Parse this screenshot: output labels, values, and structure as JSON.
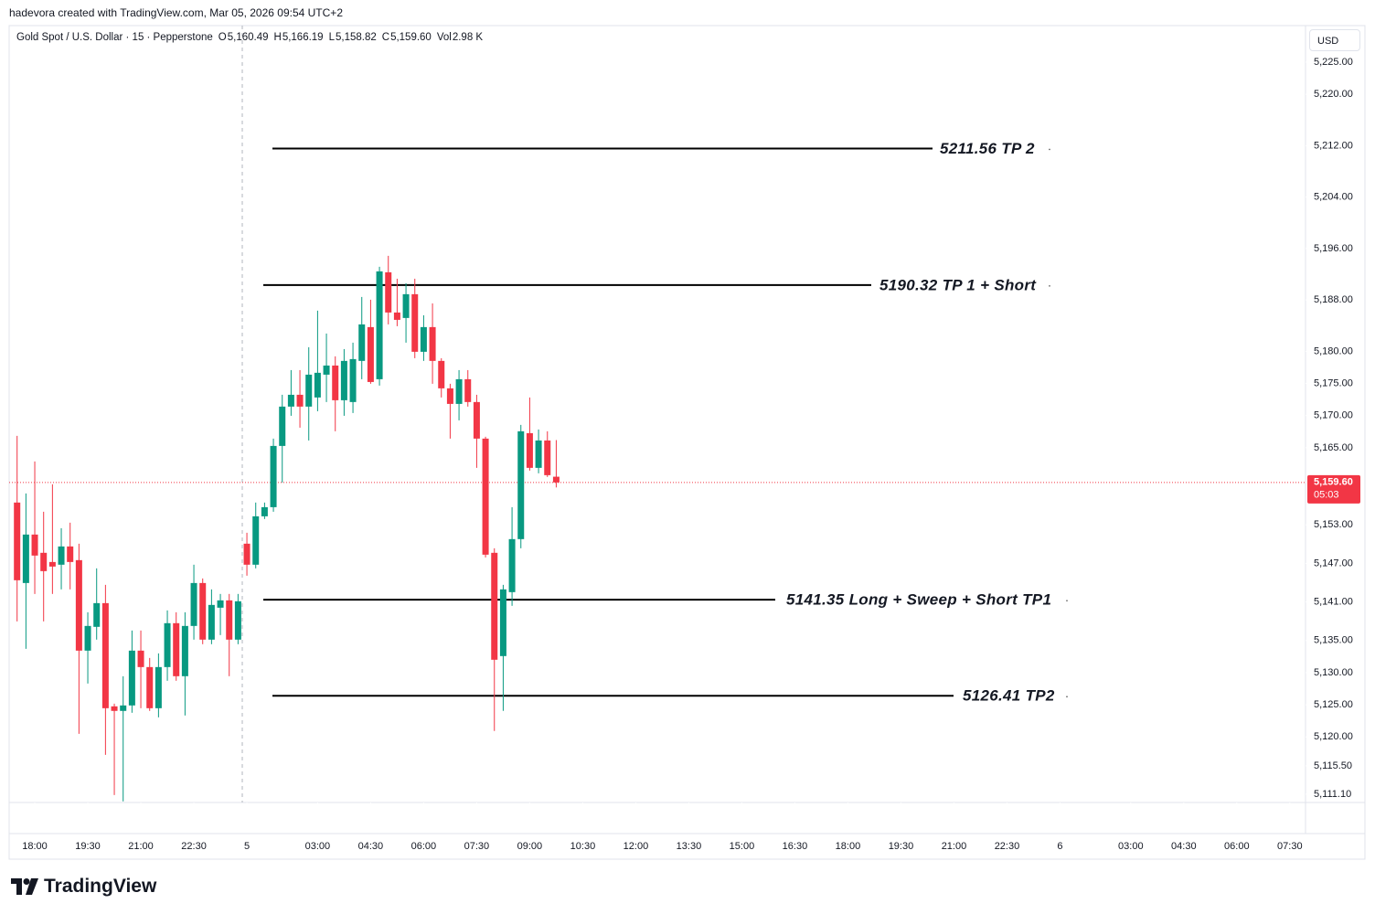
{
  "header": "hadevora created with TradingView.com, Mar 05, 2026 09:54 UTC+2",
  "brand": "TradingView",
  "chart_data": {
    "type": "candlestick",
    "title": "Gold Spot / U.S. Dollar · 15 · Pepperstone",
    "ohlc_legend": [
      {
        "key": "O",
        "label": "5,160.49"
      },
      {
        "key": "H",
        "label": "5,166.19"
      },
      {
        "key": "L",
        "label": "5,158.82"
      },
      {
        "key": "C",
        "label": "5,159.60"
      }
    ],
    "volume": {
      "key": "Vol",
      "label": "2.98 K"
    },
    "currency": "USD",
    "up_color": "#089981",
    "down_color": "#f23645",
    "grid": false,
    "x": [
      -2,
      -1,
      0,
      1,
      2,
      3,
      4,
      5,
      6,
      7,
      8,
      9,
      10,
      11,
      12,
      13,
      14,
      15,
      16,
      17,
      18,
      19,
      20,
      21,
      22,
      23,
      24,
      25,
      26,
      27,
      28,
      29,
      30,
      31,
      32,
      33,
      34,
      35,
      36,
      37,
      38,
      39,
      40,
      41,
      42,
      43,
      44,
      45,
      46,
      47,
      48,
      49,
      50,
      51,
      52,
      53,
      54,
      55,
      56,
      57,
      58,
      59
    ],
    "open": [
      5156.47,
      5143.95,
      5151.49,
      5148.65,
      5147.22,
      5146.8,
      5149.64,
      5147.51,
      5133.43,
      5137.13,
      5140.82,
      5124.76,
      5124.05,
      5124.9,
      5133.43,
      5130.87,
      5124.47,
      5130.87,
      5137.7,
      5129.45,
      5137.27,
      5143.95,
      5135.14,
      5140.11,
      5141.25,
      5135.14,
      5150.07,
      5146.8,
      5154.33,
      5155.75,
      5165.28,
      5171.4,
      5173.24,
      5171.4,
      5172.82,
      5176.37,
      5177.79,
      5172.39,
      5172.11,
      5178.51,
      5183.77,
      5175.66,
      5192.3,
      5186.04,
      5185.19,
      5188.89,
      5179.93,
      5183.77,
      5178.51,
      5174.24,
      5171.82,
      5175.66,
      5172.11,
      5166.42,
      5148.65,
      5132.58,
      5142.53,
      5150.78,
      5167.27,
      5161.87,
      5166.13,
      5160.49
    ],
    "high": [
      5166.85,
      5157.89,
      5162.86,
      5155.04,
      5159.31,
      5152.48,
      5153.34,
      5150.07,
      5139.4,
      5146.23,
      5143.67,
      5125.18,
      5129.45,
      5136.56,
      5136.56,
      5132.29,
      5133.0,
      5139.69,
      5139.4,
      5139.4,
      5146.8,
      5144.66,
      5142.96,
      5142.25,
      5142.25,
      5142.25,
      5151.77,
      5156.47,
      5156.47,
      5166.42,
      5173.24,
      5177.08,
      5177.08,
      5180.64,
      5186.33,
      5182.77,
      5179.22,
      5180.35,
      5181.35,
      5188.46,
      5188.03,
      5193.15,
      5194.86,
      5191.3,
      5190.59,
      5191.3,
      5185.61,
      5187.46,
      5178.93,
      5174.95,
      5177.08,
      5177.08,
      5173.24,
      5166.7,
      5149.36,
      5143.67,
      5155.75,
      5168.55,
      5172.82,
      5167.84,
      5167.56,
      5166.19
    ],
    "low": [
      5137.98,
      5133.71,
      5142.25,
      5137.98,
      5142.25,
      5142.96,
      5142.96,
      5120.49,
      5128.31,
      5135.14,
      5117.22,
      5110.96,
      5109.97,
      5123.76,
      5124.47,
      5124.05,
      5123.05,
      5128.74,
      5128.74,
      5123.34,
      5135.14,
      5134.43,
      5134.43,
      5135.85,
      5129.45,
      5134.43,
      5145.09,
      5146.23,
      5153.91,
      5155.04,
      5159.59,
      5169.97,
      5168.12,
      5166.13,
      5170.68,
      5172.11,
      5167.56,
      5169.97,
      5170.4,
      5175.66,
      5174.95,
      5174.67,
      5184.19,
      5183.91,
      5181.35,
      5178.93,
      5178.51,
      5174.95,
      5172.82,
      5166.42,
      5169.26,
      5171.4,
      5161.87,
      5147.93,
      5120.92,
      5124.05,
      5140.4,
      5149.36,
      5161.44,
      5161.02,
      5160.45,
      5158.82
    ],
    "close": [
      5144.38,
      5151.49,
      5148.22,
      5145.8,
      5146.51,
      5149.64,
      5147.22,
      5133.43,
      5137.27,
      5140.82,
      5124.47,
      5124.05,
      5124.9,
      5133.43,
      5130.87,
      5124.47,
      5130.87,
      5137.7,
      5129.45,
      5137.27,
      5143.95,
      5135.14,
      5140.54,
      5141.25,
      5135.14,
      5141.11,
      5146.8,
      5154.33,
      5155.75,
      5165.28,
      5171.4,
      5173.24,
      5171.4,
      5176.37,
      5176.66,
      5177.79,
      5172.39,
      5178.51,
      5178.79,
      5184.19,
      5175.23,
      5192.44,
      5186.04,
      5184.9,
      5188.89,
      5179.93,
      5183.77,
      5178.51,
      5174.24,
      5171.82,
      5175.66,
      5172.11,
      5166.42,
      5148.36,
      5132.01,
      5142.96,
      5150.78,
      5167.56,
      5161.87,
      5166.13,
      5160.73,
      5159.6
    ],
    "xlim": [
      -2.9,
      150.5
    ],
    "xticks": [
      {
        "value": 0,
        "label": "18:00"
      },
      {
        "value": 6,
        "label": "19:30"
      },
      {
        "value": 12,
        "label": "21:00"
      },
      {
        "value": 18,
        "label": "22:30"
      },
      {
        "value": 24,
        "label": "5"
      },
      {
        "value": 32,
        "label": "03:00"
      },
      {
        "value": 38,
        "label": "04:30"
      },
      {
        "value": 44,
        "label": "06:00"
      },
      {
        "value": 50,
        "label": "07:30"
      },
      {
        "value": 56,
        "label": "09:00"
      },
      {
        "value": 62,
        "label": "10:30"
      },
      {
        "value": 68,
        "label": "12:00"
      },
      {
        "value": 74,
        "label": "13:30"
      },
      {
        "value": 80,
        "label": "15:00"
      },
      {
        "value": 86,
        "label": "16:30"
      },
      {
        "value": 92,
        "label": "18:00"
      },
      {
        "value": 98,
        "label": "19:30"
      },
      {
        "value": 104,
        "label": "21:00"
      },
      {
        "value": 110,
        "label": "22:30"
      },
      {
        "value": 116,
        "label": "6"
      },
      {
        "value": 124,
        "label": "03:00"
      },
      {
        "value": 130,
        "label": "04:30"
      },
      {
        "value": 136,
        "label": "06:00"
      },
      {
        "value": 142,
        "label": "07:30"
      }
    ],
    "ylim": [
      5109.8,
      5230.4
    ],
    "yticks": [
      {
        "value": 5225,
        "label": "5,225.00"
      },
      {
        "value": 5220,
        "label": "5,220.00"
      },
      {
        "value": 5212,
        "label": "5,212.00"
      },
      {
        "value": 5204,
        "label": "5,204.00"
      },
      {
        "value": 5196,
        "label": "5,196.00"
      },
      {
        "value": 5188,
        "label": "5,188.00"
      },
      {
        "value": 5180,
        "label": "5,180.00"
      },
      {
        "value": 5175,
        "label": "5,175.00"
      },
      {
        "value": 5170,
        "label": "5,170.00"
      },
      {
        "value": 5165,
        "label": "5,165.00"
      },
      {
        "value": 5153,
        "label": "5,153.00"
      },
      {
        "value": 5147,
        "label": "5,147.00"
      },
      {
        "value": 5141,
        "label": "5,141.00"
      },
      {
        "value": 5135,
        "label": "5,135.00"
      },
      {
        "value": 5130,
        "label": "5,130.00"
      },
      {
        "value": 5125,
        "label": "5,125.00"
      },
      {
        "value": 5120,
        "label": "5,120.00"
      },
      {
        "value": 5115.5,
        "label": "5,115.50"
      },
      {
        "value": 5111.1,
        "label": "5,111.10"
      }
    ],
    "last_price": {
      "value": 5159.6,
      "label": "5,159.60",
      "countdown": "05:03",
      "color": "#f23645"
    },
    "annotations": [
      {
        "value": 5211.56,
        "label": "5211.56 TP 2"
      },
      {
        "value": 5190.32,
        "label": "5190.32 TP 1 + Short"
      },
      {
        "value": 5141.35,
        "label": "5141.35  Long + Sweep + Short TP1"
      },
      {
        "value": 5126.41,
        "label": "5126.41 TP2"
      }
    ]
  }
}
